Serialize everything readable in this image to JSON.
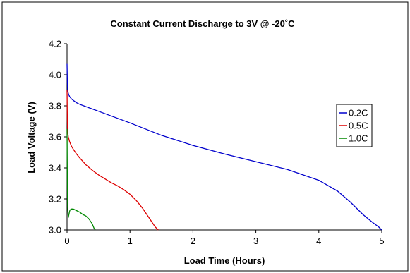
{
  "chart_data": {
    "type": "line",
    "title": "Constant Current Discharge to 3V @ -20˚C",
    "xlabel": "Load Time (Hours)",
    "ylabel": "Load Voltage (V)",
    "xlim": [
      0,
      5
    ],
    "ylim": [
      3.0,
      4.2
    ],
    "xticks": [
      0,
      1,
      2,
      3,
      4,
      5
    ],
    "yticks": [
      3.0,
      3.2,
      3.4,
      3.6,
      3.8,
      4.0,
      4.2
    ],
    "ytick_labels": [
      "3.0",
      "3.2",
      "3.4",
      "3.6",
      "3.8",
      "4.0",
      "4.2"
    ],
    "xtick_labels": [
      "0",
      "1",
      "2",
      "3",
      "4",
      "5"
    ],
    "grid": false,
    "legend_position": "right",
    "series": [
      {
        "name": "0.2C",
        "color": "#0000cc",
        "x": [
          0,
          0.005,
          0.01,
          0.02,
          0.04,
          0.07,
          0.1,
          0.15,
          0.2,
          0.3,
          0.4,
          0.5,
          0.7,
          1.0,
          1.5,
          2.0,
          2.5,
          3.0,
          3.5,
          4.0,
          4.3,
          4.5,
          4.7,
          4.85,
          4.95,
          5.0
        ],
        "y": [
          4.07,
          3.95,
          3.9,
          3.88,
          3.86,
          3.845,
          3.835,
          3.82,
          3.81,
          3.795,
          3.78,
          3.765,
          3.735,
          3.69,
          3.61,
          3.545,
          3.49,
          3.44,
          3.39,
          3.32,
          3.25,
          3.18,
          3.1,
          3.05,
          3.02,
          3.0
        ]
      },
      {
        "name": "0.5C",
        "color": "#dd0000",
        "x": [
          0,
          0.005,
          0.01,
          0.02,
          0.04,
          0.07,
          0.1,
          0.15,
          0.2,
          0.3,
          0.4,
          0.5,
          0.6,
          0.7,
          0.8,
          0.9,
          1.0,
          1.1,
          1.2,
          1.3,
          1.4,
          1.45
        ],
        "y": [
          3.9,
          3.7,
          3.63,
          3.6,
          3.57,
          3.54,
          3.52,
          3.49,
          3.465,
          3.42,
          3.385,
          3.355,
          3.33,
          3.305,
          3.285,
          3.26,
          3.23,
          3.19,
          3.14,
          3.08,
          3.02,
          3.0
        ]
      },
      {
        "name": "1.0C",
        "color": "#008800",
        "x": [
          0,
          0.005,
          0.01,
          0.02,
          0.03,
          0.04,
          0.05,
          0.07,
          0.1,
          0.15,
          0.2,
          0.25,
          0.3,
          0.35,
          0.4,
          0.43,
          0.45
        ],
        "y": [
          3.65,
          3.3,
          3.15,
          3.08,
          3.1,
          3.12,
          3.13,
          3.135,
          3.135,
          3.125,
          3.115,
          3.1,
          3.09,
          3.07,
          3.04,
          3.01,
          3.0
        ]
      }
    ]
  }
}
